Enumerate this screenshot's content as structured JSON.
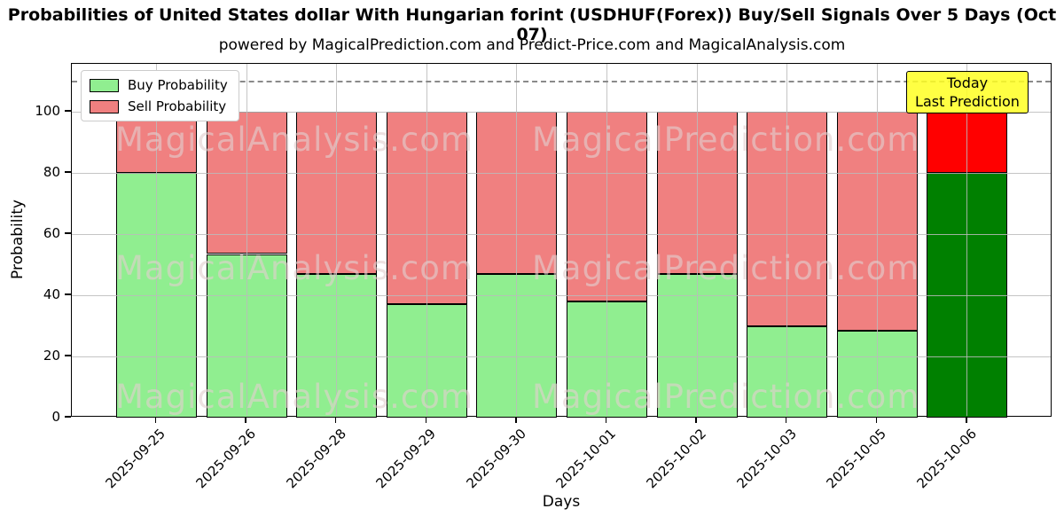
{
  "header": {
    "title": "Probabilities of United States dollar With Hungarian forint (USDHUF(Forex)) Buy/Sell Signals Over 5 Days (Oct 07)",
    "subtitle": "powered by MagicalPrediction.com and Predict-Price.com and MagicalAnalysis.com"
  },
  "legend": {
    "items": [
      {
        "label": "Buy Probability",
        "color": "#90EE90"
      },
      {
        "label": "Sell Probability",
        "color": "#F08080"
      }
    ]
  },
  "annotation": {
    "line1": "Today",
    "line2": "Last Prediction",
    "bg_color": "#FFFF22"
  },
  "watermarks": {
    "left_text": "MagicalAnalysis.com",
    "right_text": "MagicalPrediction.com"
  },
  "chart_data": {
    "type": "bar",
    "stacked": true,
    "title": "Probabilities of United States dollar With Hungarian forint (USDHUF(Forex)) Buy/Sell Signals Over 5 Days (Oct 07)",
    "xlabel": "Days",
    "ylabel": "Probability",
    "categories": [
      "2025-09-25",
      "2025-09-26",
      "2025-09-28",
      "2025-09-29",
      "2025-09-30",
      "2025-10-01",
      "2025-10-02",
      "2025-10-03",
      "2025-10-05",
      "2025-10-06"
    ],
    "series": [
      {
        "name": "Buy Probability",
        "values": [
          80,
          53.5,
          47,
          37,
          47,
          38,
          47,
          30,
          28.5,
          80
        ]
      },
      {
        "name": "Sell Probability",
        "values": [
          20,
          46.5,
          53,
          63,
          53,
          62,
          53,
          70,
          71.5,
          20
        ]
      }
    ],
    "today_index": 9,
    "colors": {
      "buy": "#90EE90",
      "sell": "#F08080",
      "today_buy": "#008000",
      "today_sell": "#FF0000"
    },
    "y_ticks": [
      0,
      20,
      40,
      60,
      80,
      100
    ],
    "ylim": [
      0,
      115.7
    ],
    "threshold_line": 110,
    "grid": true,
    "legend_position": "upper left"
  }
}
